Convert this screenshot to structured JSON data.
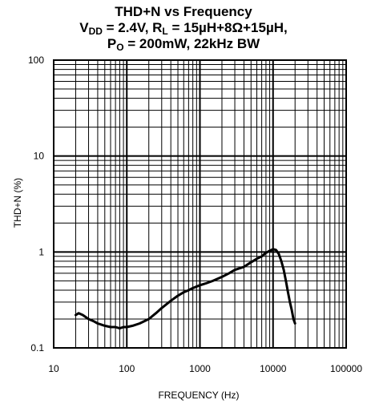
{
  "chart_data": {
    "type": "line",
    "title": "THD+N vs Frequency",
    "subtitle_line1": {
      "v": "V",
      "v_sub": "DD",
      "mid": " = 2.4V, R",
      "r_sub": "L",
      "end": " = 15µH+8Ω+15µH,"
    },
    "subtitle_line2": {
      "p": "P",
      "p_sub": "O",
      "end": " = 200mW, 22kHz BW"
    },
    "xlabel": "FREQUENCY (Hz)",
    "ylabel": "THD+N (%)",
    "xscale": "log",
    "yscale": "log",
    "xlim": [
      10,
      100000
    ],
    "ylim": [
      0.1,
      100
    ],
    "x_ticks": [
      {
        "value": 10,
        "label": "10"
      },
      {
        "value": 100,
        "label": "100"
      },
      {
        "value": 1000,
        "label": "1000"
      },
      {
        "value": 10000,
        "label": "10000"
      },
      {
        "value": 100000,
        "label": "100000"
      }
    ],
    "y_ticks": [
      {
        "value": 0.1,
        "label": "0.1"
      },
      {
        "value": 1,
        "label": "1"
      },
      {
        "value": 10,
        "label": "10"
      },
      {
        "value": 100,
        "label": "100"
      }
    ],
    "grid": true,
    "series": [
      {
        "color": "#000000",
        "x": [
          20,
          22,
          25,
          30,
          35,
          40,
          50,
          60,
          70,
          80,
          90,
          100,
          120,
          150,
          200,
          250,
          300,
          400,
          500,
          600,
          700,
          800,
          1000,
          1200,
          1500,
          2000,
          2500,
          3000,
          4000,
          5000,
          6000,
          7000,
          8000,
          9000,
          10000,
          11000,
          12000,
          13000,
          14000,
          15000,
          16000,
          17000,
          18000,
          19000,
          20000
        ],
        "y": [
          0.22,
          0.23,
          0.22,
          0.2,
          0.19,
          0.18,
          0.17,
          0.165,
          0.165,
          0.16,
          0.165,
          0.165,
          0.17,
          0.18,
          0.2,
          0.23,
          0.26,
          0.31,
          0.35,
          0.38,
          0.4,
          0.42,
          0.45,
          0.47,
          0.5,
          0.55,
          0.6,
          0.65,
          0.7,
          0.78,
          0.85,
          0.9,
          0.98,
          1.03,
          1.07,
          1.05,
          0.95,
          0.8,
          0.65,
          0.5,
          0.38,
          0.3,
          0.25,
          0.2,
          0.18
        ]
      }
    ]
  }
}
